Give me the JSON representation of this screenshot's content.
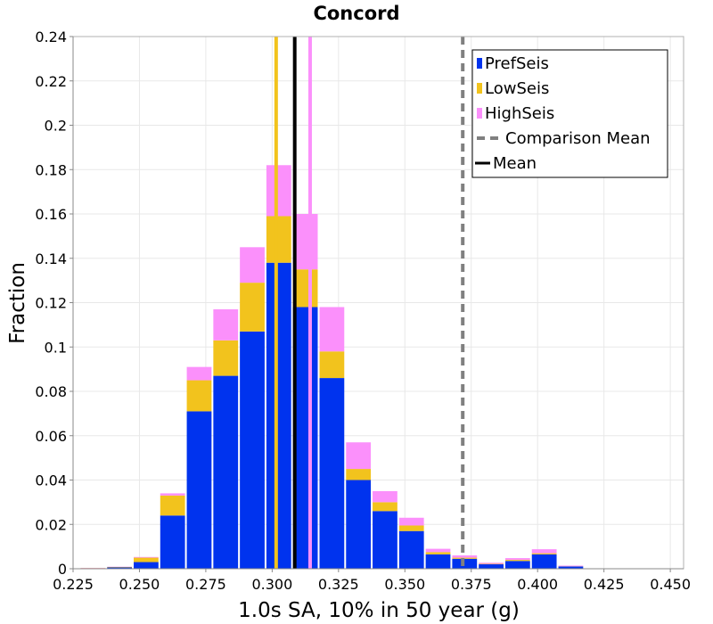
{
  "chart_data": {
    "type": "bar",
    "stacked": true,
    "title": "Concord",
    "xlabel": "1.0s SA, 10% in 50 year (g)",
    "ylabel": "Fraction",
    "xlim": [
      0.225,
      0.455
    ],
    "ylim": [
      0,
      0.24
    ],
    "xticks": [
      "0.225",
      "0.250",
      "0.275",
      "0.300",
      "0.325",
      "0.350",
      "0.375",
      "0.400",
      "0.425",
      "0.450"
    ],
    "yticks": [
      "0",
      "0.02",
      "0.04",
      "0.06",
      "0.08",
      "0.1",
      "0.12",
      "0.14",
      "0.16",
      "0.18",
      "0.2",
      "0.22",
      "0.24"
    ],
    "bin_width": 0.01,
    "bins": [
      0.2325,
      0.2425,
      0.2525,
      0.2625,
      0.2725,
      0.2825,
      0.2925,
      0.3025,
      0.3125,
      0.3225,
      0.3325,
      0.3425,
      0.3525,
      0.3625,
      0.3725,
      0.3825,
      0.3925,
      0.4025,
      0.4125
    ],
    "series": [
      {
        "name": "PrefSeis",
        "color": "#0033ee",
        "values": [
          0.0002,
          0.0006,
          0.003,
          0.024,
          0.071,
          0.087,
          0.107,
          0.138,
          0.118,
          0.086,
          0.04,
          0.026,
          0.017,
          0.0065,
          0.0045,
          0.002,
          0.0035,
          0.0065,
          0.001
        ]
      },
      {
        "name": "LowSeis",
        "color": "#f2c31d",
        "values": [
          0.0001,
          0.0002,
          0.002,
          0.009,
          0.014,
          0.016,
          0.022,
          0.021,
          0.017,
          0.012,
          0.005,
          0.004,
          0.0025,
          0.001,
          0.0005,
          0.0002,
          0.0005,
          0.0005,
          0.0001
        ]
      },
      {
        "name": "HighSeis",
        "color": "#fb90fb",
        "values": [
          0.0001,
          0.0001,
          0.0003,
          0.001,
          0.006,
          0.014,
          0.016,
          0.023,
          0.025,
          0.02,
          0.012,
          0.005,
          0.0035,
          0.0015,
          0.001,
          0.0005,
          0.0008,
          0.0018,
          0.0003
        ]
      }
    ],
    "vertical_lines": [
      {
        "name": "LowSeis",
        "x": 0.3015,
        "color": "#f2c31d",
        "style": "solid"
      },
      {
        "name": "HighSeis",
        "x": 0.3143,
        "color": "#fb90fb",
        "style": "solid"
      },
      {
        "name": "Mean",
        "x": 0.3085,
        "color": "#000000",
        "style": "solid"
      },
      {
        "name": "Comparison Mean",
        "x": 0.3718,
        "color": "#808080",
        "style": "dashed"
      }
    ],
    "legend": {
      "position": "top-right",
      "entries": [
        {
          "label": "PrefSeis",
          "color": "#0033ee",
          "kind": "box"
        },
        {
          "label": "LowSeis",
          "color": "#f2c31d",
          "kind": "box"
        },
        {
          "label": "HighSeis",
          "color": "#fb90fb",
          "kind": "box"
        },
        {
          "label": "Comparison Mean",
          "color": "#808080",
          "kind": "dash"
        },
        {
          "label": "Mean",
          "color": "#000000",
          "kind": "line"
        }
      ]
    },
    "grid": true
  }
}
